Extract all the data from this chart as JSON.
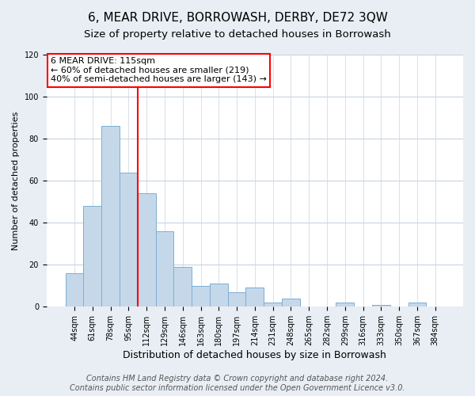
{
  "title": "6, MEAR DRIVE, BORROWASH, DERBY, DE72 3QW",
  "subtitle": "Size of property relative to detached houses in Borrowash",
  "xlabel": "Distribution of detached houses by size in Borrowash",
  "ylabel": "Number of detached properties",
  "categories": [
    "44sqm",
    "61sqm",
    "78sqm",
    "95sqm",
    "112sqm",
    "129sqm",
    "146sqm",
    "163sqm",
    "180sqm",
    "197sqm",
    "214sqm",
    "231sqm",
    "248sqm",
    "265sqm",
    "282sqm",
    "299sqm",
    "316sqm",
    "333sqm",
    "350sqm",
    "367sqm",
    "384sqm"
  ],
  "values": [
    16,
    48,
    86,
    64,
    54,
    36,
    19,
    10,
    11,
    7,
    9,
    2,
    4,
    0,
    0,
    2,
    0,
    1,
    0,
    2,
    0
  ],
  "bar_color": "#c5d8ea",
  "bar_edge_color": "#7baed4",
  "highlight_line_color": "red",
  "annotation_text": "6 MEAR DRIVE: 115sqm\n← 60% of detached houses are smaller (219)\n40% of semi-detached houses are larger (143) →",
  "annotation_box_color": "white",
  "annotation_box_edge_color": "red",
  "ylim": [
    0,
    120
  ],
  "yticks": [
    0,
    20,
    40,
    60,
    80,
    100,
    120
  ],
  "footer": "Contains HM Land Registry data © Crown copyright and database right 2024.\nContains public sector information licensed under the Open Government Licence v3.0.",
  "background_color": "#e8eef4",
  "plot_bg_color": "white",
  "title_fontsize": 11,
  "subtitle_fontsize": 9.5,
  "xlabel_fontsize": 9,
  "ylabel_fontsize": 8,
  "footer_fontsize": 7,
  "tick_fontsize": 7,
  "annot_fontsize": 8
}
